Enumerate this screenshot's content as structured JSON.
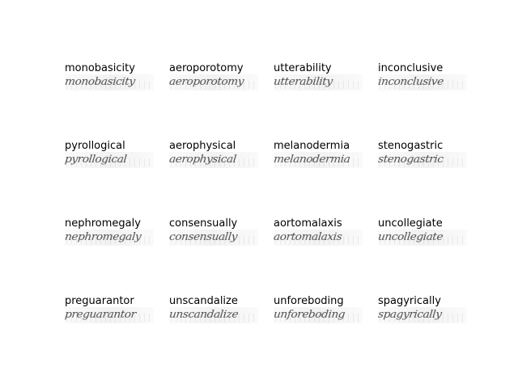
{
  "rows": [
    [
      {
        "word": "monobasicity"
      },
      {
        "word": "aeroporotomy"
      },
      {
        "word": "utterability"
      },
      {
        "word": "inconclusive"
      }
    ],
    [
      {
        "word": "pyrollogical"
      },
      {
        "word": "aerophysical"
      },
      {
        "word": "melanodermia"
      },
      {
        "word": "stenogastric"
      }
    ],
    [
      {
        "word": "nephromegaly"
      },
      {
        "word": "consensually"
      },
      {
        "word": "aortomalaxis"
      },
      {
        "word": "uncollegiate"
      }
    ],
    [
      {
        "word": "preguarantor"
      },
      {
        "word": "unscandalize"
      },
      {
        "word": "unforeboding"
      },
      {
        "word": "spagyrically"
      }
    ]
  ]
}
